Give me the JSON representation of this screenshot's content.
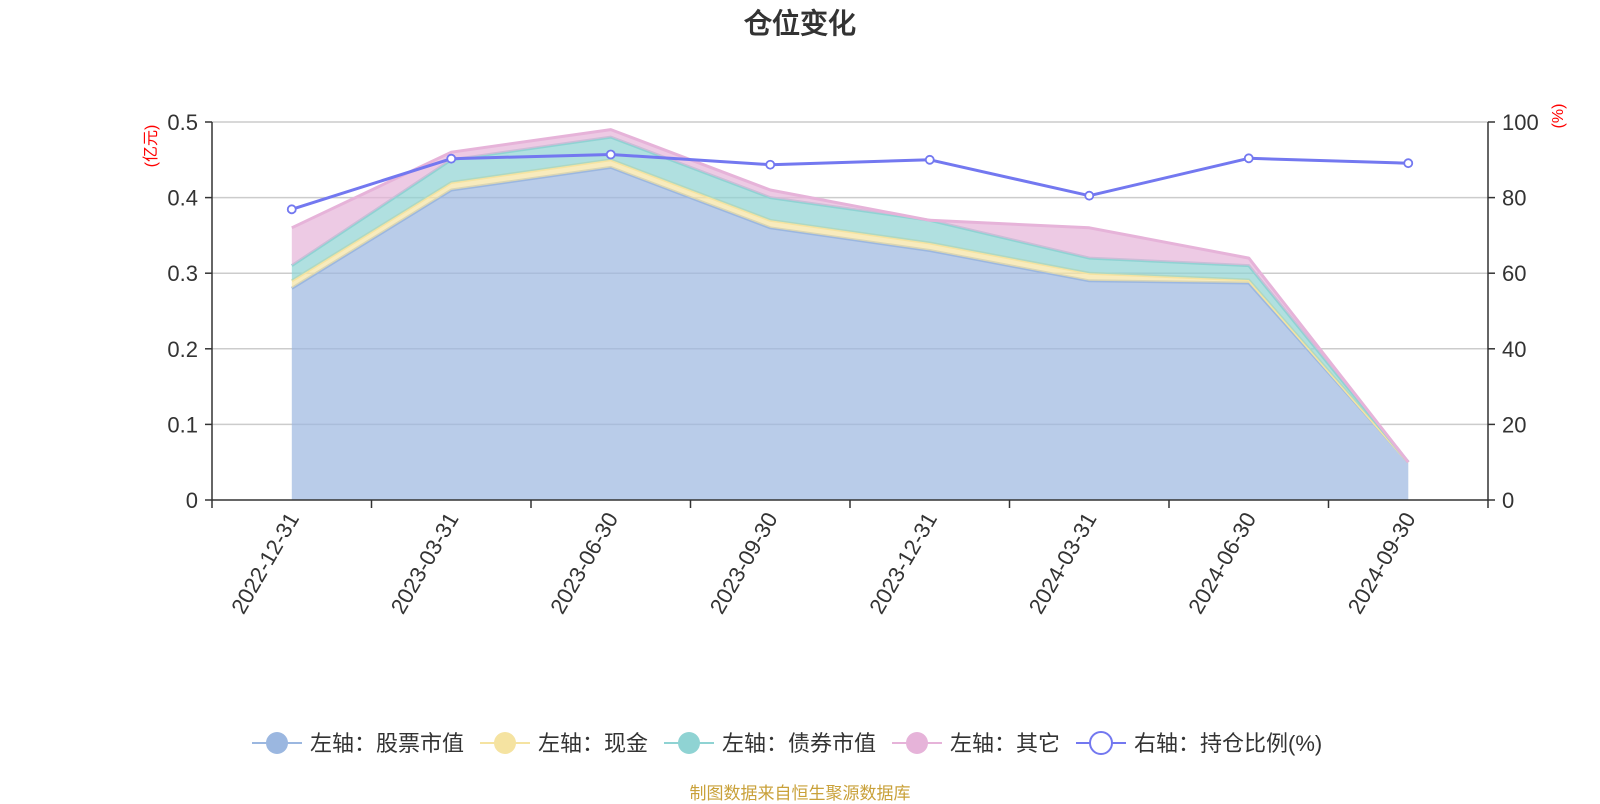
{
  "title": "仓位变化",
  "source_note": "制图数据来自恒生聚源数据库",
  "colors": {
    "stock": "#9bb7e0",
    "cash": "#f5e3a1",
    "bond": "#8fd3d3",
    "other": "#e6b3d9",
    "ratio": "#7378f0",
    "grid": "#cccccc",
    "axis": "#333333",
    "unit": "#ff0000"
  },
  "chart_data": {
    "type": "area",
    "title": "仓位变化",
    "x": [
      "2022-12-31",
      "2023-03-31",
      "2023-06-30",
      "2023-09-30",
      "2023-12-31",
      "2024-03-31",
      "2024-06-30",
      "2024-09-30"
    ],
    "left_axis": {
      "unit": "(亿元)",
      "ylim": [
        0,
        0.5
      ],
      "ticks": [
        "0",
        "0.1",
        "0.2",
        "0.3",
        "0.4",
        "0.5"
      ]
    },
    "right_axis": {
      "unit": "(%)",
      "ylim": [
        0,
        100
      ],
      "ticks": [
        "0",
        "20",
        "40",
        "60",
        "80",
        "100"
      ]
    },
    "stacked_series": [
      {
        "name": "左轴：股票市值",
        "color_key": "stock",
        "values": [
          0.28,
          0.41,
          0.44,
          0.36,
          0.33,
          0.29,
          0.287,
          0.05
        ]
      },
      {
        "name": "左轴：现金",
        "color_key": "cash",
        "values": [
          0.01,
          0.01,
          0.01,
          0.01,
          0.01,
          0.01,
          0.004,
          0.0
        ]
      },
      {
        "name": "左轴：债券市值",
        "color_key": "bond",
        "values": [
          0.02,
          0.03,
          0.03,
          0.03,
          0.03,
          0.02,
          0.019,
          0.0
        ]
      },
      {
        "name": "左轴：其它",
        "color_key": "other",
        "values": [
          0.05,
          0.01,
          0.01,
          0.01,
          0.0,
          0.04,
          0.01,
          0.0
        ]
      }
    ],
    "line_series": {
      "name": "右轴：持仓比例(%)",
      "color_key": "ratio",
      "values": [
        76.9,
        90.3,
        91.4,
        88.7,
        90.0,
        80.5,
        90.4,
        89.1
      ]
    },
    "grid": true,
    "legend_position": "bottom"
  }
}
